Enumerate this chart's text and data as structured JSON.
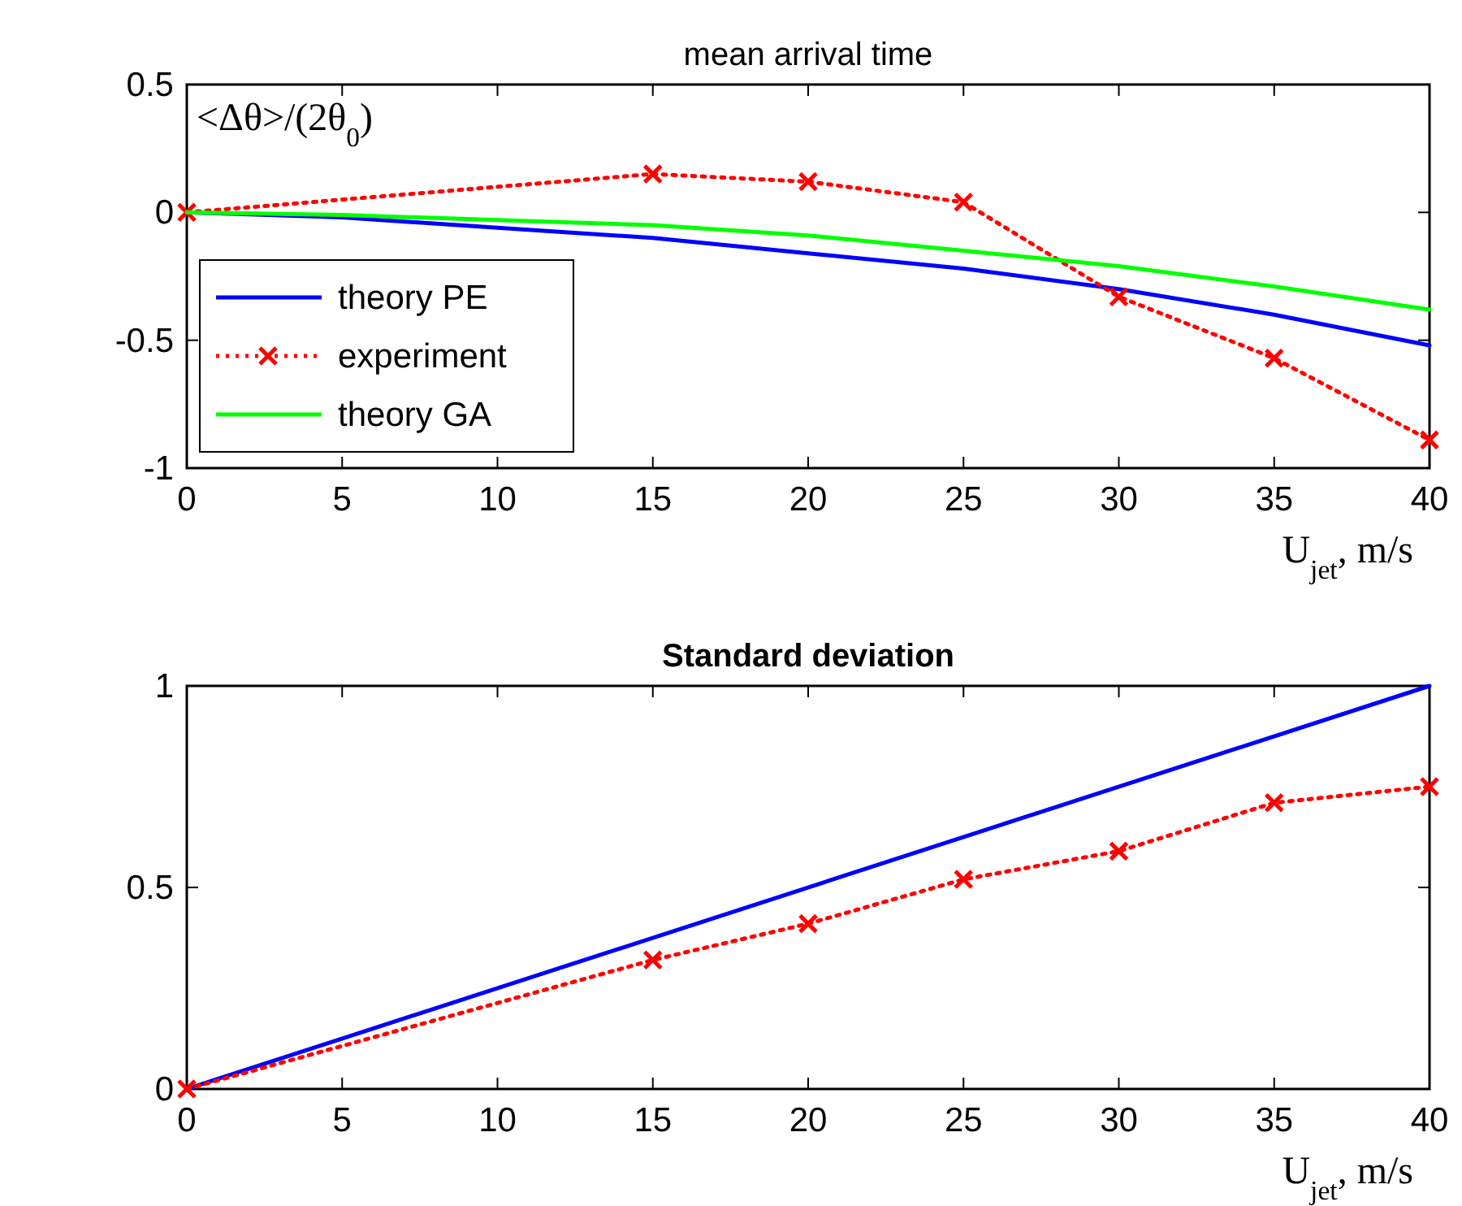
{
  "chart_data": [
    {
      "type": "line",
      "title": "mean arrival time",
      "ylabel": "<Δθ>/(2θ$_{0}$)",
      "xlabel": "U$_{jet}$, m/s",
      "xlim": [
        0,
        40
      ],
      "xticks": [
        0,
        5,
        10,
        15,
        20,
        25,
        30,
        35,
        40
      ],
      "ylim": [
        -1,
        0.5
      ],
      "yticks": [
        -1,
        -0.5,
        0,
        0.5
      ],
      "grid": false,
      "legend": "bottom left",
      "series": [
        {
          "name": "theory PE",
          "color": "#0000ff",
          "x": [
            0,
            5,
            10,
            15,
            20,
            25,
            30,
            35,
            40
          ],
          "values": [
            0,
            -0.02,
            -0.06,
            -0.1,
            -0.16,
            -0.22,
            -0.3,
            -0.4,
            -0.52
          ],
          "marker": "none",
          "line_style": "solid"
        },
        {
          "name": "experiment",
          "color": "#ff0000",
          "x": [
            0,
            15,
            20,
            25,
            30,
            35,
            40
          ],
          "values": [
            0,
            0.15,
            0.12,
            0.04,
            -0.33,
            -0.57,
            -0.89
          ],
          "marker": "cross",
          "line_style": "dotted"
        },
        {
          "name": "theory GA",
          "color": "#00ff00",
          "x": [
            0,
            5,
            10,
            15,
            20,
            25,
            30,
            35,
            40
          ],
          "values": [
            0,
            -0.01,
            -0.03,
            -0.05,
            -0.09,
            -0.15,
            -0.21,
            -0.29,
            -0.38
          ],
          "marker": "none",
          "line_style": "solid"
        }
      ]
    },
    {
      "type": "line",
      "title": "Standard deviation",
      "xlabel": "U$_{jet}$, m/s",
      "xlim": [
        0,
        40
      ],
      "xticks": [
        0,
        5,
        10,
        15,
        20,
        25,
        30,
        35,
        40
      ],
      "ylim": [
        0,
        1
      ],
      "yticks": [
        0,
        0.5,
        1
      ],
      "grid": false,
      "legend": false,
      "series": [
        {
          "color": "#0000ff",
          "x": [
            0,
            40
          ],
          "values": [
            0,
            1
          ],
          "marker": "none",
          "line_style": "solid"
        },
        {
          "color": "#ff0000",
          "x": [
            0,
            15,
            20,
            25,
            30,
            35,
            40
          ],
          "values": [
            0,
            0.32,
            0.41,
            0.52,
            0.59,
            0.71,
            0.75
          ],
          "marker": "cross",
          "line_style": "dotted"
        }
      ]
    }
  ]
}
